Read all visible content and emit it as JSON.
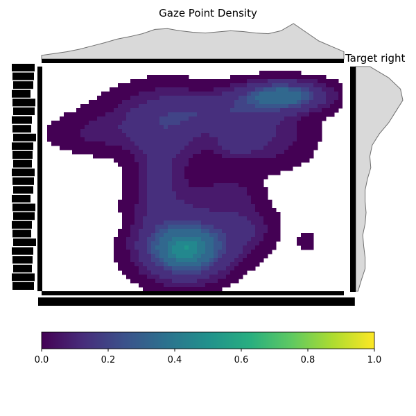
{
  "chart_data": {
    "type": "heatmap",
    "subtype": "kde-joint-density",
    "title": "Gaze Point Density",
    "annotation": "Target right",
    "xlabel": "",
    "ylabel": "",
    "colormap": "viridis",
    "colorbar": {
      "min": 0.0,
      "max": 1.0,
      "ticks": [
        0.0,
        0.2,
        0.4,
        0.6,
        0.8,
        1.0
      ],
      "tick_labels": [
        "0.0",
        "0.2",
        "0.4",
        "0.6",
        "0.8",
        "1.0"
      ],
      "placement": "bottom"
    },
    "contour_levels": [
      0.0,
      0.05,
      0.1,
      0.15,
      0.2,
      0.25,
      0.3,
      0.35,
      0.4,
      0.45,
      0.5,
      0.55,
      0.6,
      0.65
    ],
    "hotspots": [
      {
        "x": 0.8,
        "y": 0.13,
        "sx": 0.1,
        "sy": 0.045,
        "peak": 0.38
      },
      {
        "x": 0.6,
        "y": 0.2,
        "sx": 0.1,
        "sy": 0.05,
        "peak": 0.13
      },
      {
        "x": 0.4,
        "y": 0.22,
        "sx": 0.14,
        "sy": 0.09,
        "peak": 0.12
      },
      {
        "x": 0.65,
        "y": 0.33,
        "sx": 0.05,
        "sy": 0.05,
        "peak": 0.12
      },
      {
        "x": 0.42,
        "y": 0.3,
        "sx": 0.09,
        "sy": 0.12,
        "peak": 0.1
      },
      {
        "x": 0.17,
        "y": 0.3,
        "sx": 0.11,
        "sy": 0.06,
        "peak": 0.07
      },
      {
        "x": 0.38,
        "y": 0.5,
        "sx": 0.05,
        "sy": 0.12,
        "peak": 0.09
      },
      {
        "x": 0.48,
        "y": 0.82,
        "sx": 0.09,
        "sy": 0.08,
        "peak": 0.42
      },
      {
        "x": 0.45,
        "y": 0.72,
        "sx": 0.11,
        "sy": 0.14,
        "peak": 0.14
      },
      {
        "x": 0.67,
        "y": 0.72,
        "sx": 0.07,
        "sy": 0.08,
        "peak": 0.12
      },
      {
        "x": 0.63,
        "y": 0.56,
        "sx": 0.06,
        "sy": 0.05,
        "peak": 0.07
      },
      {
        "x": 0.88,
        "y": 0.78,
        "sx": 0.02,
        "sy": 0.03,
        "peak": 0.06
      },
      {
        "x": 0.75,
        "y": 0.3,
        "sx": 0.1,
        "sy": 0.1,
        "peak": 0.12
      }
    ],
    "holes": [
      {
        "x": 0.22,
        "y": 0.7,
        "sx": 0.03,
        "sy": 0.03,
        "depth": 0.05
      }
    ],
    "marginal_x_profile": [
      0.1,
      0.15,
      0.2,
      0.27,
      0.36,
      0.45,
      0.55,
      0.62,
      0.7,
      0.82,
      0.84,
      0.78,
      0.74,
      0.72,
      0.75,
      0.78,
      0.76,
      0.72,
      0.7,
      0.78,
      0.98,
      0.74,
      0.5,
      0.35,
      0.2
    ],
    "marginal_y_profile": [
      0.3,
      0.7,
      0.95,
      1.0,
      0.85,
      0.7,
      0.5,
      0.35,
      0.3,
      0.32,
      0.25,
      0.2,
      0.2,
      0.22,
      0.2,
      0.15,
      0.17,
      0.2,
      0.2,
      0.12,
      0.05
    ],
    "x_tick_labels_illegible": true,
    "y_tick_labels_illegible": true,
    "grid": false,
    "legend": "none"
  }
}
